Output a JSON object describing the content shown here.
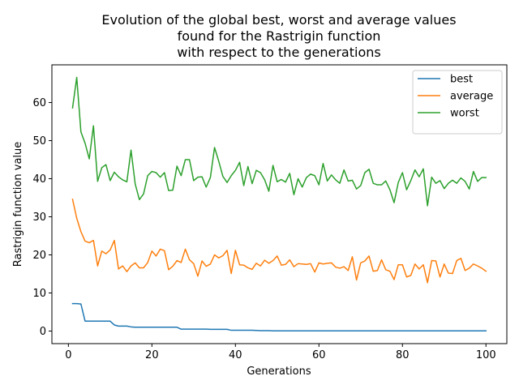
{
  "chart_data": {
    "type": "line",
    "title": [
      "Evolution of the global best, worst and average values",
      "found for the Rastrigin function",
      "with respect to the generations"
    ],
    "xlabel": "Generations",
    "ylabel": "Rastrigin function value",
    "xlim": [
      -3.95,
      105
    ],
    "ylim": [
      -3.3,
      69.9
    ],
    "xticks": [
      0,
      20,
      40,
      60,
      80,
      100
    ],
    "yticks": [
      0,
      10,
      20,
      30,
      40,
      50,
      60
    ],
    "grid": false,
    "legend_position": "top-right",
    "x": [
      1,
      2,
      3,
      4,
      5,
      6,
      7,
      8,
      9,
      10,
      11,
      12,
      13,
      14,
      15,
      16,
      17,
      18,
      19,
      20,
      21,
      22,
      23,
      24,
      25,
      26,
      27,
      28,
      29,
      30,
      31,
      32,
      33,
      34,
      35,
      36,
      37,
      38,
      39,
      40,
      41,
      42,
      43,
      44,
      45,
      46,
      47,
      48,
      49,
      50,
      51,
      52,
      53,
      54,
      55,
      56,
      57,
      58,
      59,
      60,
      61,
      62,
      63,
      64,
      65,
      66,
      67,
      68,
      69,
      70,
      71,
      72,
      73,
      74,
      75,
      76,
      77,
      78,
      79,
      80,
      81,
      82,
      83,
      84,
      85,
      86,
      87,
      88,
      89,
      90,
      91,
      92,
      93,
      94,
      95,
      96,
      97,
      98,
      99,
      100
    ],
    "series": [
      {
        "name": "best",
        "color": "#1f77b4",
        "values": [
          7.2,
          7.2,
          7.1,
          2.6,
          2.6,
          2.6,
          2.6,
          2.6,
          2.6,
          2.6,
          1.6,
          1.3,
          1.3,
          1.3,
          1.1,
          1.0,
          1.0,
          1.0,
          1.0,
          1.0,
          1.0,
          1.0,
          1.0,
          1.0,
          1.0,
          1.0,
          0.5,
          0.5,
          0.5,
          0.5,
          0.5,
          0.5,
          0.5,
          0.45,
          0.45,
          0.45,
          0.45,
          0.45,
          0.2,
          0.2,
          0.2,
          0.2,
          0.2,
          0.2,
          0.15,
          0.1,
          0.1,
          0.1,
          0.05,
          0.05,
          0.05,
          0.05,
          0.05,
          0.05,
          0.05,
          0.05,
          0.05,
          0.05,
          0.05,
          0.05,
          0.05,
          0.05,
          0.05,
          0.05,
          0.05,
          0.05,
          0.05,
          0.05,
          0.05,
          0.05,
          0.05,
          0.05,
          0.05,
          0.05,
          0.05,
          0.05,
          0.05,
          0.05,
          0.05,
          0.05,
          0.05,
          0.05,
          0.05,
          0.05,
          0.05,
          0.05,
          0.05,
          0.05,
          0.05,
          0.05,
          0.05,
          0.05,
          0.05,
          0.05,
          0.05,
          0.05,
          0.05,
          0.05,
          0.05,
          0.05
        ]
      },
      {
        "name": "average",
        "color": "#ff7f0e",
        "values": [
          34.6,
          29.6,
          26.1,
          23.6,
          23.2,
          23.8,
          17.1,
          21.0,
          20.3,
          21.3,
          23.8,
          16.3,
          17.1,
          15.6,
          17.1,
          17.9,
          16.6,
          16.6,
          18.0,
          21.0,
          19.7,
          21.5,
          21.1,
          16.1,
          17.0,
          18.5,
          18.0,
          21.5,
          18.7,
          17.7,
          14.4,
          18.4,
          17.0,
          17.6,
          20.0,
          19.2,
          19.8,
          21.2,
          15.1,
          21.2,
          17.4,
          17.3,
          16.6,
          16.2,
          17.8,
          17.1,
          18.6,
          17.8,
          18.5,
          19.7,
          17.3,
          17.5,
          18.7,
          16.9,
          17.7,
          17.6,
          17.5,
          17.7,
          15.5,
          17.9,
          17.6,
          17.8,
          17.9,
          16.8,
          16.5,
          16.9,
          15.9,
          19.5,
          13.4,
          17.9,
          18.4,
          19.7,
          15.7,
          15.9,
          18.7,
          16.1,
          15.7,
          13.5,
          17.4,
          17.4,
          14.2,
          14.6,
          17.6,
          16.3,
          17.4,
          12.7,
          18.5,
          18.4,
          14.2,
          17.6,
          15.2,
          15.1,
          18.5,
          19.1,
          15.9,
          16.5,
          17.6,
          17.1,
          16.5,
          15.7
        ]
      },
      {
        "name": "worst",
        "color": "#2ca02c",
        "values": [
          58.6,
          66.6,
          52.3,
          49.3,
          45.2,
          53.9,
          39.3,
          42.9,
          43.7,
          39.5,
          41.7,
          40.5,
          39.7,
          39.2,
          47.5,
          38.6,
          34.5,
          36.0,
          40.8,
          41.9,
          41.6,
          40.4,
          41.6,
          36.9,
          37.0,
          43.3,
          40.8,
          45.0,
          45.0,
          39.5,
          40.4,
          40.5,
          37.8,
          40.3,
          48.2,
          44.6,
          40.6,
          39.0,
          40.8,
          42.2,
          44.3,
          38.2,
          43.2,
          38.7,
          42.2,
          41.6,
          39.7,
          36.7,
          43.5,
          39.2,
          39.8,
          39.1,
          41.4,
          35.8,
          40.0,
          37.8,
          40.3,
          41.2,
          40.8,
          38.4,
          44.0,
          39.4,
          41.0,
          39.7,
          38.8,
          42.3,
          39.4,
          39.6,
          37.3,
          38.2,
          41.6,
          42.5,
          38.8,
          38.4,
          38.4,
          39.4,
          37.1,
          33.7,
          39.0,
          41.6,
          37.1,
          39.5,
          42.3,
          40.5,
          42.6,
          32.9,
          40.4,
          38.8,
          39.5,
          37.4,
          38.8,
          39.6,
          38.8,
          40.2,
          39.3,
          37.3,
          41.9,
          39.3,
          40.3,
          40.3
        ]
      }
    ]
  }
}
